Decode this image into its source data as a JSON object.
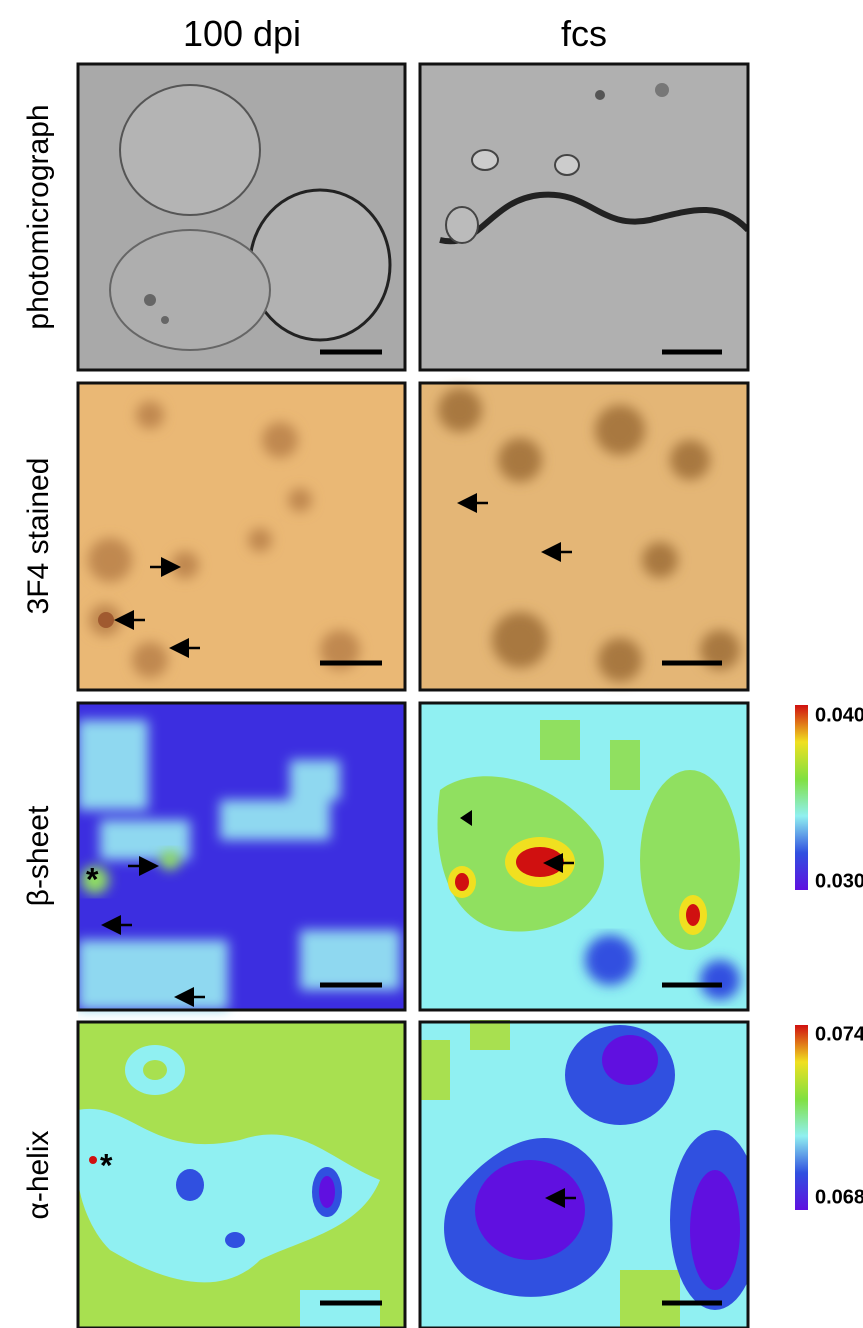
{
  "columns": [
    "100 dpi",
    "fcs"
  ],
  "rows": [
    "photomicrograph",
    "3F4 stained",
    "β-sheet",
    "α-helix"
  ],
  "colorbars": [
    {
      "max": "0.040",
      "min": "0.030"
    },
    {
      "max": "0.074",
      "min": "0.068"
    }
  ],
  "annotations": [
    "*",
    "*"
  ]
}
